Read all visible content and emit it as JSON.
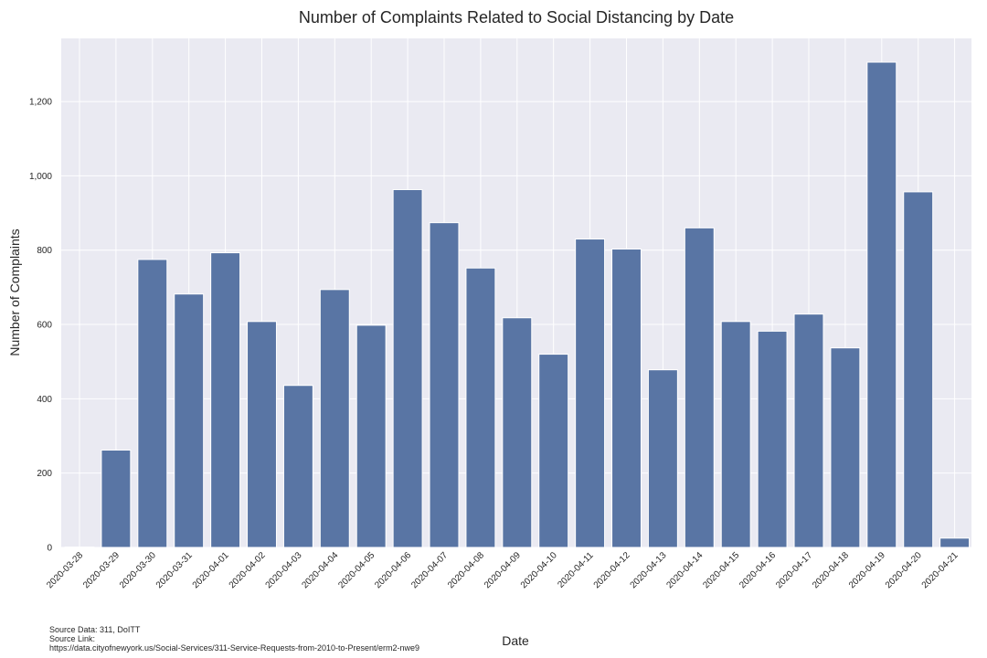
{
  "chart_data": {
    "type": "bar",
    "title": "Number of Complaints Related to Social Distancing by Date",
    "xlabel": "Date",
    "ylabel": "Number of Complaints",
    "categories": [
      "2020-03-28",
      "2020-03-29",
      "2020-03-30",
      "2020-03-31",
      "2020-04-01",
      "2020-04-02",
      "2020-04-03",
      "2020-04-04",
      "2020-04-05",
      "2020-04-06",
      "2020-04-07",
      "2020-04-08",
      "2020-04-09",
      "2020-04-10",
      "2020-04-11",
      "2020-04-12",
      "2020-04-13",
      "2020-04-14",
      "2020-04-15",
      "2020-04-16",
      "2020-04-17",
      "2020-04-18",
      "2020-04-19",
      "2020-04-20",
      "2020-04-21"
    ],
    "values": [
      1,
      262,
      775,
      682,
      793,
      608,
      436,
      694,
      598,
      963,
      874,
      752,
      618,
      520,
      830,
      803,
      478,
      860,
      608,
      582,
      628,
      537,
      1306,
      957,
      25
    ],
    "ylim": [
      0,
      1370
    ],
    "yticks": [
      0,
      200,
      400,
      600,
      800,
      1000,
      1200
    ],
    "ytick_labels": [
      "0",
      "200",
      "400",
      "600",
      "800",
      "1,000",
      "1,200"
    ],
    "grid": true,
    "bar_color": "#5975a4",
    "background_color": "#eaeaf2"
  },
  "source": {
    "line1": "Source Data: 311, DoITT",
    "line2": "Source Link:",
    "line3": "https://data.cityofnewyork.us/Social-Services/311-Service-Requests-from-2010-to-Present/erm2-nwe9"
  }
}
